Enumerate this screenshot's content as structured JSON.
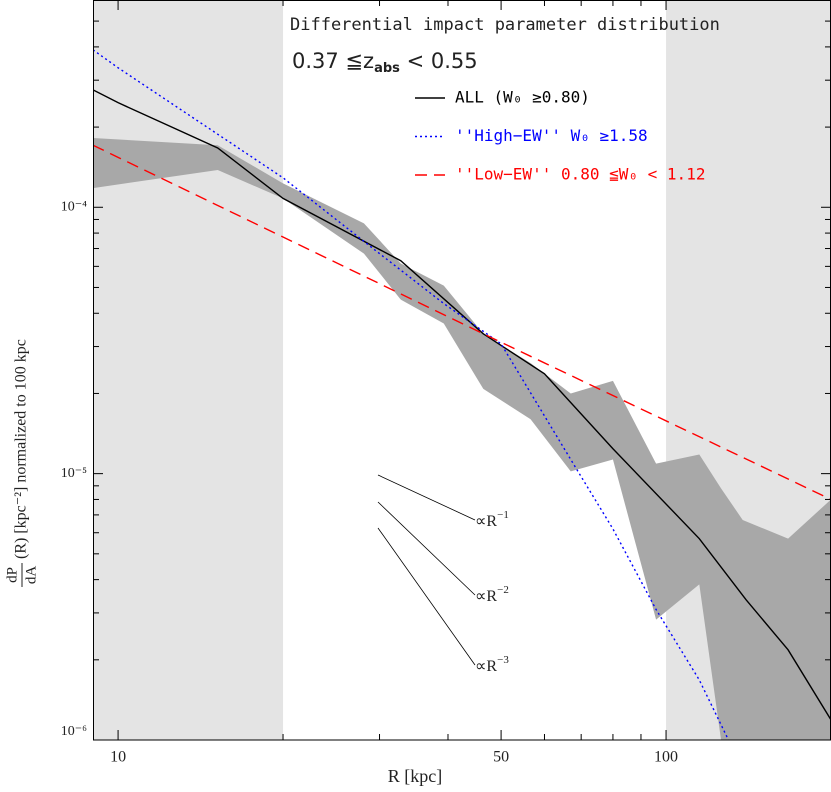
{
  "chart_data": {
    "type": "line",
    "title": "Differential impact parameter distribution",
    "subtitle": [
      "0.37 ≦z",
      "abs",
      " < 0.55"
    ],
    "xlabel": "R [kpc]",
    "ylabel": [
      "dP",
      "dA",
      "(R) [kpc⁻²] normalized to 100 kpc"
    ],
    "log_x": true,
    "log_y": true,
    "xlim": [
      9,
      200
    ],
    "ylim": [
      1e-06,
      0.0006
    ],
    "xticks": [
      10,
      50,
      100
    ],
    "xminor_ticks": [
      20,
      30,
      40,
      60,
      70,
      80,
      90,
      200
    ],
    "yticks": [
      {
        "value": 1e-06,
        "label": "10⁻⁶"
      },
      {
        "value": 1e-05,
        "label": "10⁻⁵"
      },
      {
        "value": 0.0001,
        "label": "10⁻⁴"
      }
    ],
    "yminor_ticks": [
      2e-06,
      3e-06,
      4e-06,
      5e-06,
      6e-06,
      7e-06,
      8e-06,
      9e-06,
      2e-05,
      3e-05,
      4e-05,
      5e-05,
      6e-05,
      7e-05,
      8e-05,
      9e-05,
      0.0002,
      0.0003,
      0.0004,
      0.0005
    ],
    "shaded_ranges": [
      [
        9,
        20
      ],
      [
        100,
        200
      ]
    ],
    "shaded_color": "#e4e4e4",
    "band": {
      "color": "#a8a8a8",
      "x": [
        9,
        15.2,
        20,
        28.1,
        32.8,
        39.3,
        46.4,
        56.6,
        67,
        80,
        95.9,
        115,
        126,
        138,
        167,
        200
      ],
      "upper": [
        0.000182,
        0.000171,
        0.000123,
        8.7e-05,
        6.15e-05,
        5.08e-05,
        3.35e-05,
        2.6e-05,
        2e-05,
        2.23e-05,
        1.09e-05,
        1.18e-05,
        8.8e-06,
        6.7e-06,
        5.7e-06,
        8e-06
      ],
      "lower": [
        0.000118,
        0.000138,
        0.000108,
        6.7e-05,
        4.5e-05,
        3.66e-05,
        2.08e-05,
        1.6e-05,
        1.02e-05,
        1.13e-05,
        2.83e-06,
        3.84e-06,
        1e-06,
        1e-06,
        1e-06,
        1e-06
      ]
    },
    "series": [
      {
        "name": "ALL (W₀ ≥0.80)",
        "color": "#000000",
        "dash": "none",
        "x": [
          9,
          10,
          15.2,
          20,
          32.8,
          46.4,
          60,
          80,
          115,
          140,
          167,
          200
        ],
        "values": [
          0.000276,
          0.000247,
          0.000167,
          0.000108,
          6.3e-05,
          3.35e-05,
          2.37e-05,
          1.24e-05,
          5.7e-06,
          3.36e-06,
          2.18e-06,
          1.19e-06
        ]
      },
      {
        "name": "''High−EW'' W₀ ≥1.58",
        "color": "#0000ff",
        "dash": "2 3",
        "x": [
          9,
          10,
          20,
          30,
          39.3,
          50,
          67,
          80,
          95.9,
          115,
          130
        ],
        "values": [
          0.00039,
          0.000334,
          0.000129,
          6.7e-05,
          4.35e-05,
          3.07e-05,
          1.13e-05,
          6.2e-06,
          3.09e-06,
          1.68e-06,
          1e-06
        ]
      },
      {
        "name": "''Low−EW'' 0.80 ≦W₀ < 1.12",
        "color": "#ff0000",
        "dash": "12 7",
        "x": [
          9,
          46.4,
          200
        ],
        "values": [
          0.000171,
          3.35e-05,
          8e-06
        ]
      }
    ],
    "reference_lines": [
      {
        "label": "∝R",
        "exponent": "−1"
      },
      {
        "label": "∝R",
        "exponent": "−2"
      },
      {
        "label": "∝R",
        "exponent": "−3"
      }
    ]
  }
}
